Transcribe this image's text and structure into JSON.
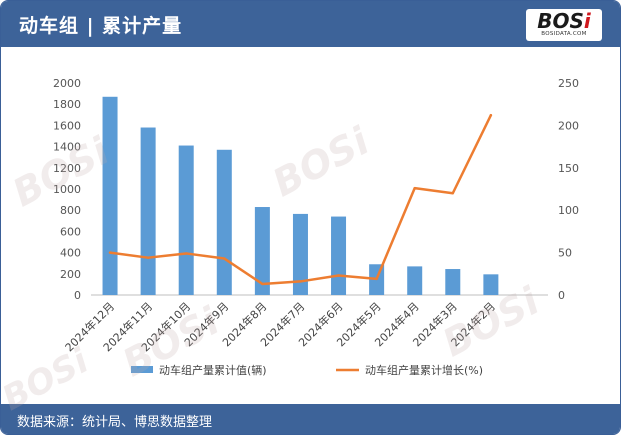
{
  "header": {
    "title": "动车组 | 累计产量"
  },
  "logo": {
    "text_main": "BOS",
    "text_dot": "i",
    "text_sub": "BOSIDATA.COM"
  },
  "footer": {
    "source": "数据来源：统计局、博思数据整理"
  },
  "colors": {
    "bar": "#5b9bd5",
    "line": "#ed7d31",
    "header_bg": "#3d6399",
    "axis_text": "#555555"
  },
  "chart_data": {
    "type": "bar+line",
    "categories": [
      "2024年12月",
      "2024年11月",
      "2024年10月",
      "2024年9月",
      "2024年8月",
      "2024年7月",
      "2024年6月",
      "2024年5月",
      "2024年4月",
      "2024年3月",
      "2024年2月"
    ],
    "series": [
      {
        "name": "动车组产量累计值(辆)",
        "type": "bar",
        "axis": "left",
        "values": [
          1870,
          1580,
          1410,
          1370,
          830,
          765,
          740,
          290,
          270,
          245,
          195
        ]
      },
      {
        "name": "动车组产量累计增长(%)",
        "type": "line",
        "axis": "right",
        "values": [
          50,
          44,
          49,
          43,
          13,
          16,
          23,
          19,
          126,
          120,
          212
        ]
      }
    ],
    "left_axis": {
      "min": 0,
      "max": 2000,
      "ticks": [
        "0",
        "200",
        "400",
        "600",
        "800",
        "1000",
        "1200",
        "1400",
        "1600",
        "1800",
        "2000"
      ]
    },
    "right_axis": {
      "min": 0,
      "max": 250,
      "ticks": [
        "0",
        "50",
        "100",
        "150",
        "200",
        "250"
      ]
    },
    "legend_position": "bottom",
    "grid": false
  }
}
